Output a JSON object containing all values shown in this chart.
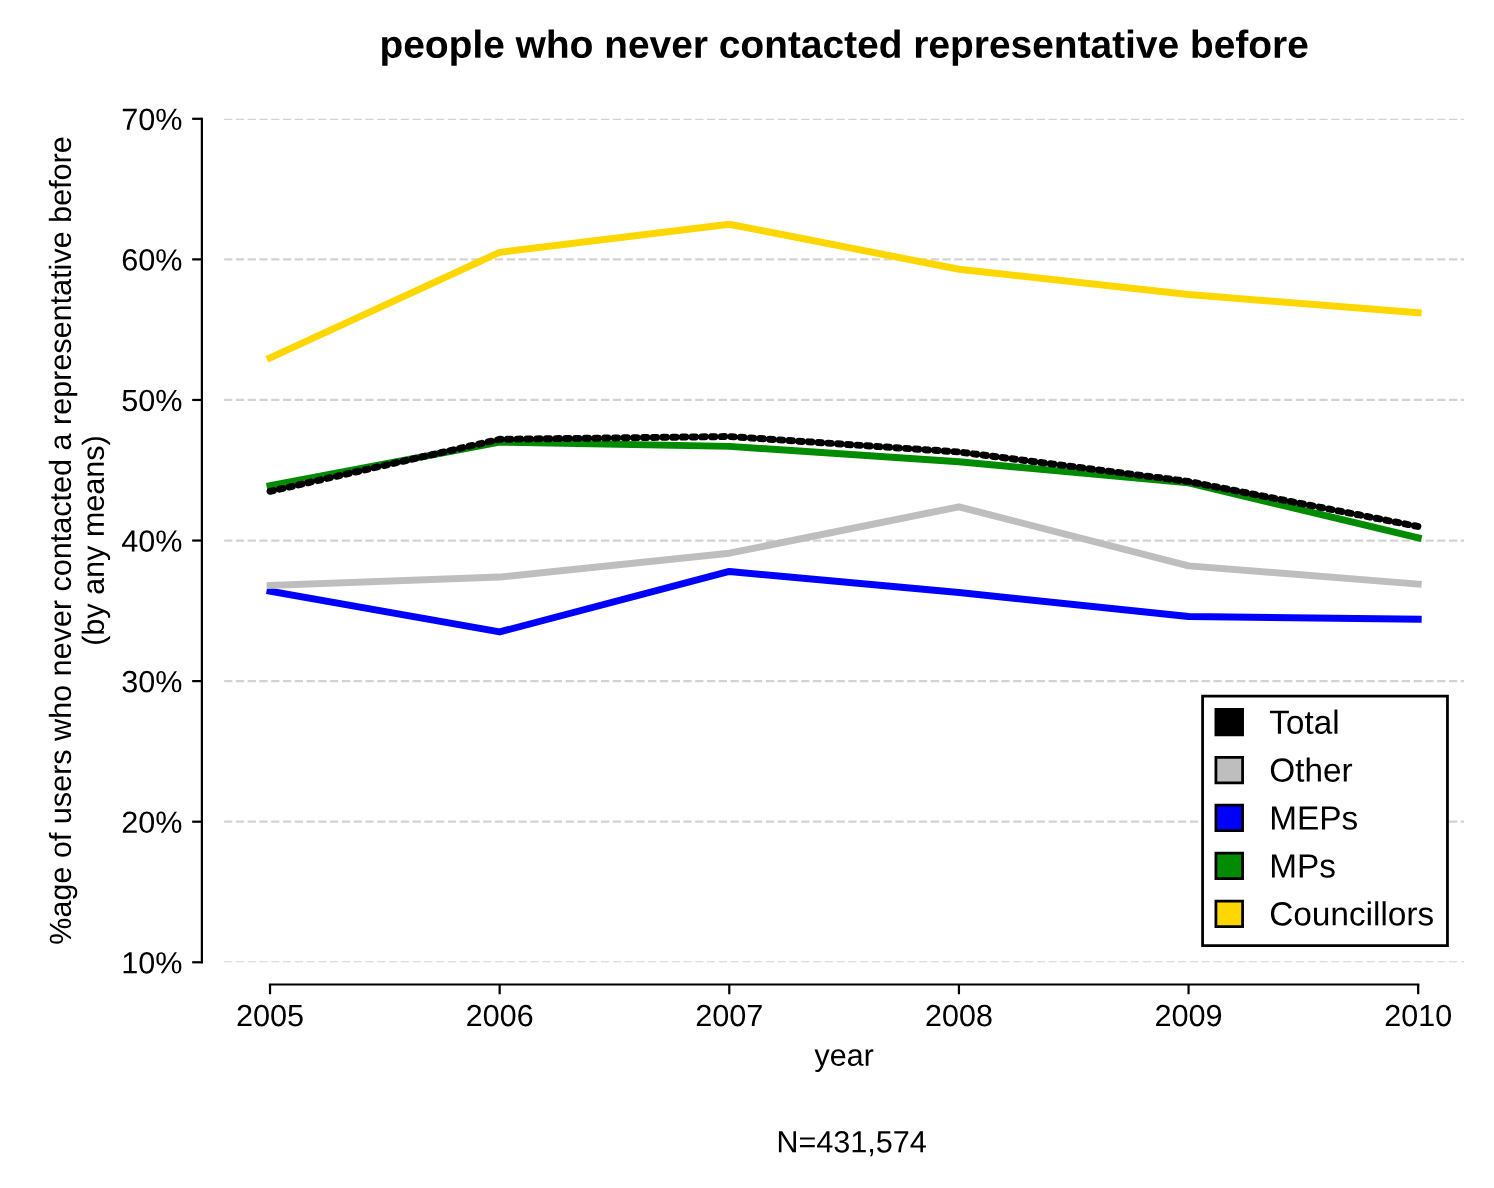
{
  "chart_data": {
    "type": "line",
    "title": "people who never contacted representative before",
    "xlabel": "year",
    "ylabel": "%age of users who never contacted a representative before\n(by any means)",
    "annotations": [
      "N=431,574"
    ],
    "x": [
      2005,
      2006,
      2007,
      2008,
      2009,
      2010
    ],
    "xlim": [
      2004.8,
      2010.2
    ],
    "xticks": [
      2005,
      2006,
      2007,
      2008,
      2009,
      2010
    ],
    "ylim": [
      10,
      70
    ],
    "yticks": [
      {
        "value": 10,
        "label": "10%"
      },
      {
        "value": 20,
        "label": "20%"
      },
      {
        "value": 30,
        "label": "30%"
      },
      {
        "value": 40,
        "label": "40%"
      },
      {
        "value": 50,
        "label": "50%"
      },
      {
        "value": 60,
        "label": "60%"
      },
      {
        "value": 70,
        "label": "70%"
      }
    ],
    "grid": "y",
    "legend": "bottom right",
    "marker": "none",
    "series": [
      {
        "name": "Councillors",
        "color": "#ffd700",
        "values": [
          53.0,
          60.5,
          62.5,
          59.3,
          57.5,
          56.2
        ]
      },
      {
        "name": "MPs",
        "color": "#008b00",
        "values": [
          43.9,
          47.0,
          46.7,
          45.6,
          44.1,
          40.2
        ]
      },
      {
        "name": "MEPs",
        "color": "#0000ff",
        "values": [
          36.4,
          33.5,
          37.8,
          36.3,
          34.6,
          34.4
        ]
      },
      {
        "name": "Other",
        "color": "#bebebe",
        "values": [
          36.8,
          37.4,
          39.1,
          42.4,
          38.2,
          36.9
        ]
      },
      {
        "name": "Total",
        "color": "#000000",
        "line_style": "dotted",
        "values": [
          43.5,
          47.2,
          47.4,
          46.3,
          44.2,
          41.0
        ]
      }
    ]
  }
}
